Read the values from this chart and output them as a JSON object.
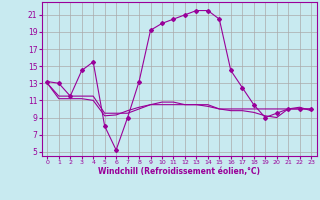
{
  "xlabel": "Windchill (Refroidissement éolien,°C)",
  "background_color": "#c8eaf0",
  "grid_color": "#aaaaaa",
  "line_color": "#990099",
  "xlim": [
    -0.5,
    23.5
  ],
  "ylim": [
    4.5,
    22.5
  ],
  "yticks": [
    5,
    7,
    9,
    11,
    13,
    15,
    17,
    19,
    21
  ],
  "xticks": [
    0,
    1,
    2,
    3,
    4,
    5,
    6,
    7,
    8,
    9,
    10,
    11,
    12,
    13,
    14,
    15,
    16,
    17,
    18,
    19,
    20,
    21,
    22,
    23
  ],
  "series1_x": [
    0,
    1,
    2,
    3,
    4,
    5,
    6,
    7,
    8,
    9,
    10,
    11,
    12,
    13,
    14,
    15,
    16,
    17,
    18,
    19,
    20,
    21,
    22,
    23
  ],
  "series1_y": [
    13.2,
    13.0,
    11.5,
    14.5,
    15.5,
    8.0,
    5.2,
    9.0,
    13.2,
    19.2,
    20.0,
    20.5,
    21.0,
    21.5,
    21.5,
    20.5,
    14.5,
    12.5,
    10.5,
    9.0,
    9.5,
    10.0,
    10.0,
    10.0
  ],
  "series2_x": [
    0,
    1,
    2,
    3,
    4,
    5,
    6,
    7,
    8,
    9,
    10,
    11,
    12,
    13,
    14,
    15,
    16,
    17,
    18,
    19,
    20,
    21,
    22,
    23
  ],
  "series2_y": [
    13.0,
    11.5,
    11.5,
    11.5,
    11.5,
    9.5,
    9.5,
    9.5,
    10.0,
    10.5,
    10.5,
    10.5,
    10.5,
    10.5,
    10.5,
    10.0,
    10.0,
    10.0,
    10.0,
    10.0,
    10.0,
    10.0,
    10.0,
    10.0
  ],
  "series3_x": [
    0,
    1,
    2,
    3,
    4,
    5,
    6,
    7,
    8,
    9,
    10,
    11,
    12,
    13,
    14,
    15,
    16,
    17,
    18,
    19,
    20,
    21,
    22,
    23
  ],
  "series3_y": [
    13.0,
    11.2,
    11.2,
    11.2,
    11.0,
    9.2,
    9.3,
    9.8,
    10.2,
    10.5,
    10.8,
    10.8,
    10.5,
    10.5,
    10.3,
    10.0,
    9.8,
    9.8,
    9.6,
    9.2,
    9.0,
    10.0,
    10.2,
    9.8
  ]
}
